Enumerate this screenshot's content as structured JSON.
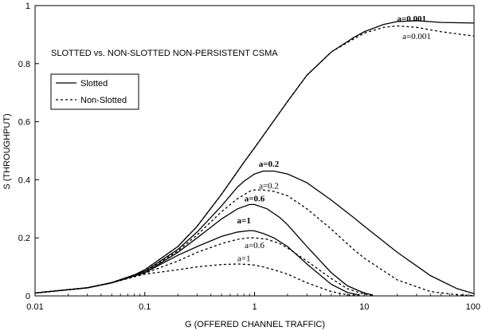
{
  "chart_data": {
    "type": "line",
    "title": "SLOTTED vs. NON-SLOTTED NON-PERSISTENT CSMA",
    "xlabel": "G (OFFERED CHANNEL TRAFFIC)",
    "ylabel": "S (THROUGHPUT)",
    "xscale": "log",
    "xlim": [
      0.01,
      100
    ],
    "ylim": [
      0,
      1
    ],
    "xticks": [
      "0.01",
      "0.1",
      "1",
      "10",
      "100"
    ],
    "xtick_values": [
      0.01,
      0.1,
      1,
      10,
      100
    ],
    "yticks": [
      "0",
      "0.2",
      "0.4",
      "0.6",
      "0.8",
      "1"
    ],
    "ytick_values": [
      0,
      0.2,
      0.4,
      0.6,
      0.8,
      1
    ],
    "grid": false,
    "legend": {
      "placement": "upper-left",
      "entries": [
        {
          "label": "Slotted",
          "style": "solid"
        },
        {
          "label": "Non-Slotted",
          "style": "dashed"
        }
      ]
    },
    "series": [
      {
        "name": "Slotted",
        "style": "solid",
        "label": "a=0.001",
        "label_bold": true,
        "label_at": [
          27,
          0.945
        ],
        "x": [
          0.01,
          0.03,
          0.05,
          0.08,
          0.1,
          0.2,
          0.3,
          0.5,
          0.8,
          1,
          2,
          3,
          5,
          8,
          10,
          15,
          20,
          30,
          50,
          100
        ],
        "y": [
          0.01,
          0.028,
          0.046,
          0.072,
          0.09,
          0.17,
          0.24,
          0.35,
          0.46,
          0.51,
          0.67,
          0.76,
          0.84,
          0.89,
          0.91,
          0.935,
          0.945,
          0.948,
          0.942,
          0.94
        ]
      },
      {
        "name": "Non-Slotted",
        "style": "dashed",
        "label": "a=0.001",
        "label_bold": false,
        "label_at": [
          30,
          0.885
        ],
        "x": [
          0.01,
          0.03,
          0.05,
          0.08,
          0.1,
          0.2,
          0.3,
          0.5,
          0.8,
          1,
          2,
          3,
          5,
          8,
          10,
          15,
          20,
          30,
          50,
          100
        ],
        "y": [
          0.01,
          0.028,
          0.046,
          0.072,
          0.09,
          0.17,
          0.24,
          0.35,
          0.46,
          0.51,
          0.67,
          0.76,
          0.84,
          0.885,
          0.905,
          0.925,
          0.93,
          0.925,
          0.91,
          0.895
        ]
      },
      {
        "name": "Slotted",
        "style": "solid",
        "label": "a=0.2",
        "label_bold": true,
        "label_at": [
          1.35,
          0.445
        ],
        "x": [
          0.01,
          0.03,
          0.05,
          0.1,
          0.2,
          0.3,
          0.5,
          0.7,
          0.8,
          1,
          1.2,
          1.5,
          2,
          3,
          5,
          8,
          10,
          20,
          40,
          70,
          100
        ],
        "y": [
          0.01,
          0.028,
          0.045,
          0.085,
          0.16,
          0.22,
          0.31,
          0.375,
          0.395,
          0.42,
          0.43,
          0.43,
          0.42,
          0.39,
          0.33,
          0.27,
          0.24,
          0.15,
          0.07,
          0.025,
          0.008
        ]
      },
      {
        "name": "Non-Slotted",
        "style": "dashed",
        "label": "a=0.2",
        "label_bold": false,
        "label_at": [
          1.35,
          0.37
        ],
        "x": [
          0.01,
          0.03,
          0.05,
          0.1,
          0.2,
          0.3,
          0.5,
          0.7,
          0.9,
          1,
          1.2,
          1.5,
          2,
          3,
          5,
          8,
          10,
          20,
          40,
          70,
          100
        ],
        "y": [
          0.01,
          0.028,
          0.045,
          0.084,
          0.155,
          0.21,
          0.29,
          0.335,
          0.36,
          0.365,
          0.365,
          0.36,
          0.345,
          0.3,
          0.23,
          0.16,
          0.13,
          0.055,
          0.015,
          0.004,
          0.001
        ]
      },
      {
        "name": "Slotted",
        "style": "solid",
        "label": "a=0.6",
        "label_bold": true,
        "label_at": [
          1.0,
          0.325
        ],
        "x": [
          0.01,
          0.03,
          0.05,
          0.1,
          0.2,
          0.3,
          0.5,
          0.7,
          0.9,
          1,
          1.3,
          1.7,
          2,
          3,
          5,
          7,
          10,
          12
        ],
        "y": [
          0.01,
          0.028,
          0.045,
          0.08,
          0.15,
          0.2,
          0.265,
          0.3,
          0.315,
          0.315,
          0.3,
          0.27,
          0.245,
          0.17,
          0.08,
          0.035,
          0.01,
          0.003
        ]
      },
      {
        "name": "Non-Slotted",
        "style": "dashed",
        "label": "a=0.6",
        "label_bold": false,
        "label_at": [
          1.0,
          0.165
        ],
        "x": [
          0.01,
          0.03,
          0.05,
          0.1,
          0.2,
          0.3,
          0.5,
          0.7,
          0.9,
          1,
          1.3,
          1.7,
          2,
          3,
          5,
          7,
          10,
          12
        ],
        "y": [
          0.01,
          0.028,
          0.045,
          0.078,
          0.12,
          0.15,
          0.18,
          0.195,
          0.2,
          0.2,
          0.195,
          0.18,
          0.165,
          0.12,
          0.06,
          0.025,
          0.006,
          0.002
        ]
      },
      {
        "name": "Slotted",
        "style": "solid",
        "label": "a=1",
        "label_bold": true,
        "label_at": [
          0.8,
          0.25
        ],
        "x": [
          0.01,
          0.03,
          0.05,
          0.1,
          0.2,
          0.3,
          0.5,
          0.7,
          0.9,
          1,
          1.2,
          1.5,
          2,
          3,
          5,
          7,
          9
        ],
        "y": [
          0.01,
          0.028,
          0.045,
          0.08,
          0.14,
          0.17,
          0.205,
          0.22,
          0.225,
          0.224,
          0.215,
          0.2,
          0.17,
          0.11,
          0.04,
          0.012,
          0.003
        ]
      },
      {
        "name": "Non-Slotted",
        "style": "dashed",
        "label": "a=1",
        "label_bold": false,
        "label_at": [
          0.8,
          0.12
        ],
        "x": [
          0.01,
          0.03,
          0.05,
          0.1,
          0.2,
          0.3,
          0.5,
          0.7,
          0.9,
          1,
          1.2,
          1.5,
          2,
          3,
          5,
          7,
          9
        ],
        "y": [
          0.01,
          0.028,
          0.045,
          0.075,
          0.09,
          0.1,
          0.108,
          0.11,
          0.108,
          0.106,
          0.1,
          0.09,
          0.075,
          0.045,
          0.015,
          0.004,
          0.001
        ]
      }
    ]
  }
}
